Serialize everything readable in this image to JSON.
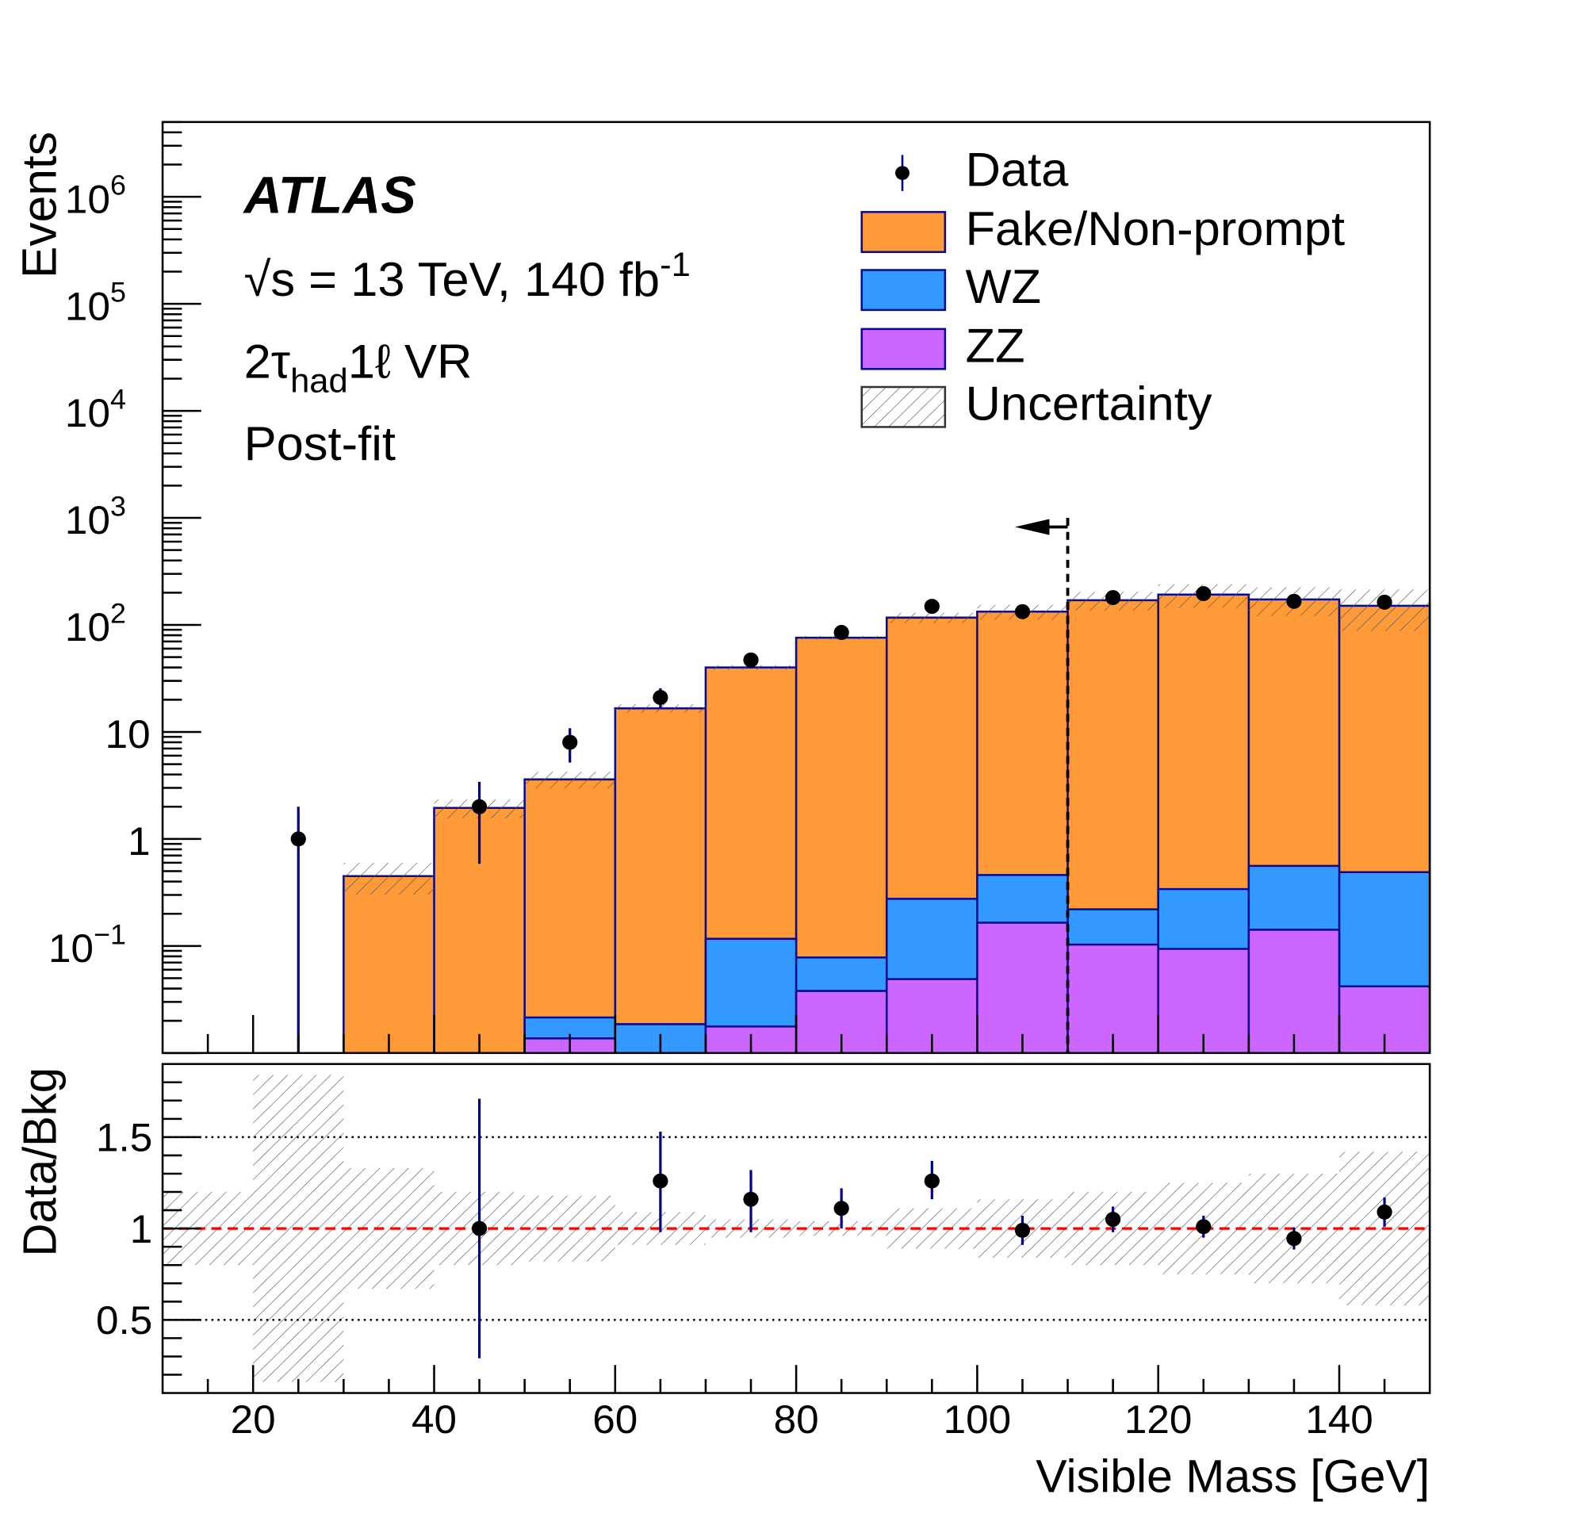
{
  "colors": {
    "fake": "#fe9a38",
    "wz": "#3399ff",
    "zz": "#cc66ff",
    "outline": "#0a0a8c",
    "data": "#000000",
    "errbar": "#00008b",
    "refline": "#ff0000",
    "hatch": "#555555"
  },
  "labels": {
    "atlas": "ATLAS",
    "energy": "√s = 13 TeV, 140 fb",
    "energy_exp": "-1",
    "region_pre": "2τ",
    "region_sub": "had",
    "region_post": "1ℓ VR",
    "fit": "Post-fit"
  },
  "legend": {
    "data": "Data",
    "fake": "Fake/Non-prompt",
    "wz": "WZ",
    "zz": "ZZ",
    "unc": "Uncertainty"
  },
  "chart_data": [
    {
      "type": "bar",
      "stacked": true,
      "log_y": true,
      "ylabel": "Events",
      "xlim": [
        10,
        150
      ],
      "ylim": [
        0.01,
        5000000
      ],
      "bin_edges": [
        10,
        20,
        30,
        40,
        50,
        60,
        70,
        80,
        90,
        100,
        110,
        120,
        130,
        140,
        150
      ],
      "series": [
        {
          "name": "ZZ",
          "values": [
            0,
            0,
            0,
            0,
            0.0137,
            0,
            0.0177,
            0.038,
            0.049,
            0.165,
            0.103,
            0.094,
            0.142,
            0.042
          ]
        },
        {
          "name": "WZ",
          "values": [
            0,
            0,
            0,
            0,
            0.0078,
            0.0186,
            0.099,
            0.04,
            0.227,
            0.295,
            0.117,
            0.246,
            0.418,
            0.448
          ]
        },
        {
          "name": "Fake/Non-prompt",
          "values": [
            0,
            0,
            0.45,
            1.95,
            3.58,
            16.6,
            39.9,
            75.9,
            116.7,
            132.5,
            169.7,
            191.7,
            172.4,
            150.5
          ]
        }
      ],
      "uncertainty_rel": [
        0.2,
        0.84,
        0.33,
        0.2,
        0.18,
        0.09,
        0.05,
        0.04,
        0.11,
        0.16,
        0.2,
        0.25,
        0.3,
        0.42
      ],
      "data": {
        "x": [
          25,
          45,
          55,
          65,
          75,
          85,
          95,
          105,
          115,
          125,
          135,
          145
        ],
        "y": [
          1,
          2,
          8,
          21,
          47,
          85,
          149,
          133,
          180,
          196,
          166,
          163
        ]
      },
      "yticks": [
        {
          "base": "10",
          "exp": "−1",
          "value": 0.1
        },
        {
          "base": "1",
          "exp": "",
          "value": 1
        },
        {
          "base": "10",
          "exp": "",
          "value": 10
        },
        {
          "base": "10",
          "exp": "2",
          "value": 100
        },
        {
          "base": "10",
          "exp": "3",
          "value": 1000
        },
        {
          "base": "10",
          "exp": "4",
          "value": 10000
        },
        {
          "base": "10",
          "exp": "5",
          "value": 100000
        },
        {
          "base": "10",
          "exp": "6",
          "value": 1000000
        }
      ],
      "cut": {
        "x": 110,
        "direction": "left"
      }
    },
    {
      "type": "scatter",
      "ylabel": "Data/Bkg",
      "xlabel": "Visible Mass [GeV]",
      "xlim": [
        10,
        150
      ],
      "ylim": [
        0.1,
        1.9
      ],
      "x": [
        45,
        65,
        75,
        85,
        95,
        105,
        115,
        125,
        135,
        145
      ],
      "y": [
        1.0,
        1.26,
        1.16,
        1.11,
        1.26,
        0.99,
        1.05,
        1.01,
        0.945,
        1.09
      ],
      "err_lo": [
        0.71,
        0.28,
        0.18,
        0.11,
        0.1,
        0.08,
        0.07,
        0.06,
        0.06,
        0.08
      ],
      "err_hi": [
        0.71,
        0.27,
        0.16,
        0.11,
        0.11,
        0.08,
        0.07,
        0.06,
        0.06,
        0.08
      ],
      "reference": 1,
      "gridlines": [
        0.5,
        1.5
      ],
      "yticks": [
        "0.5",
        "1",
        "1.5"
      ],
      "ytick_values": [
        0.5,
        1,
        1.5
      ],
      "xticks": [
        "20",
        "40",
        "60",
        "80",
        "100",
        "120",
        "140"
      ],
      "xtick_values": [
        20,
        40,
        60,
        80,
        100,
        120,
        140
      ]
    }
  ]
}
